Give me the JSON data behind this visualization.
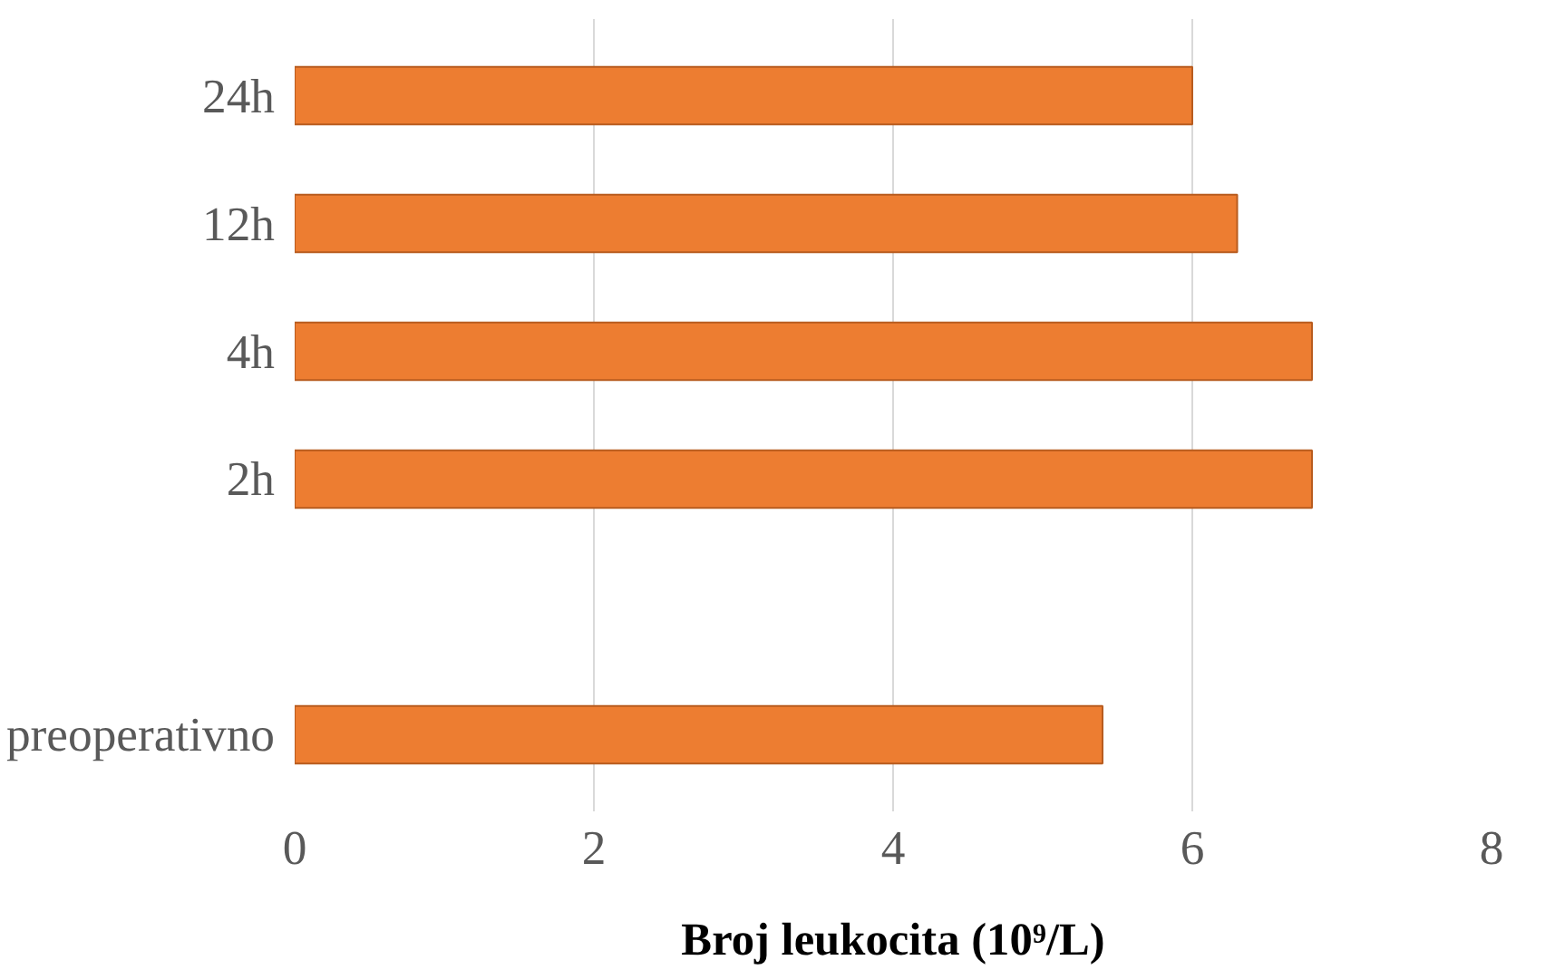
{
  "chart_data": {
    "type": "bar",
    "orientation": "horizontal",
    "xlabel": "Broj leukocita (10⁹/L)",
    "categories": [
      "24h",
      "12h",
      "4h",
      "2h",
      null,
      "preoperativno"
    ],
    "values": [
      6.0,
      6.3,
      6.8,
      6.8,
      null,
      5.4
    ],
    "color": "#ed7d31",
    "xlim": [
      0,
      8
    ],
    "xticks": [
      0,
      2,
      4,
      6,
      8
    ],
    "grid": "x"
  }
}
